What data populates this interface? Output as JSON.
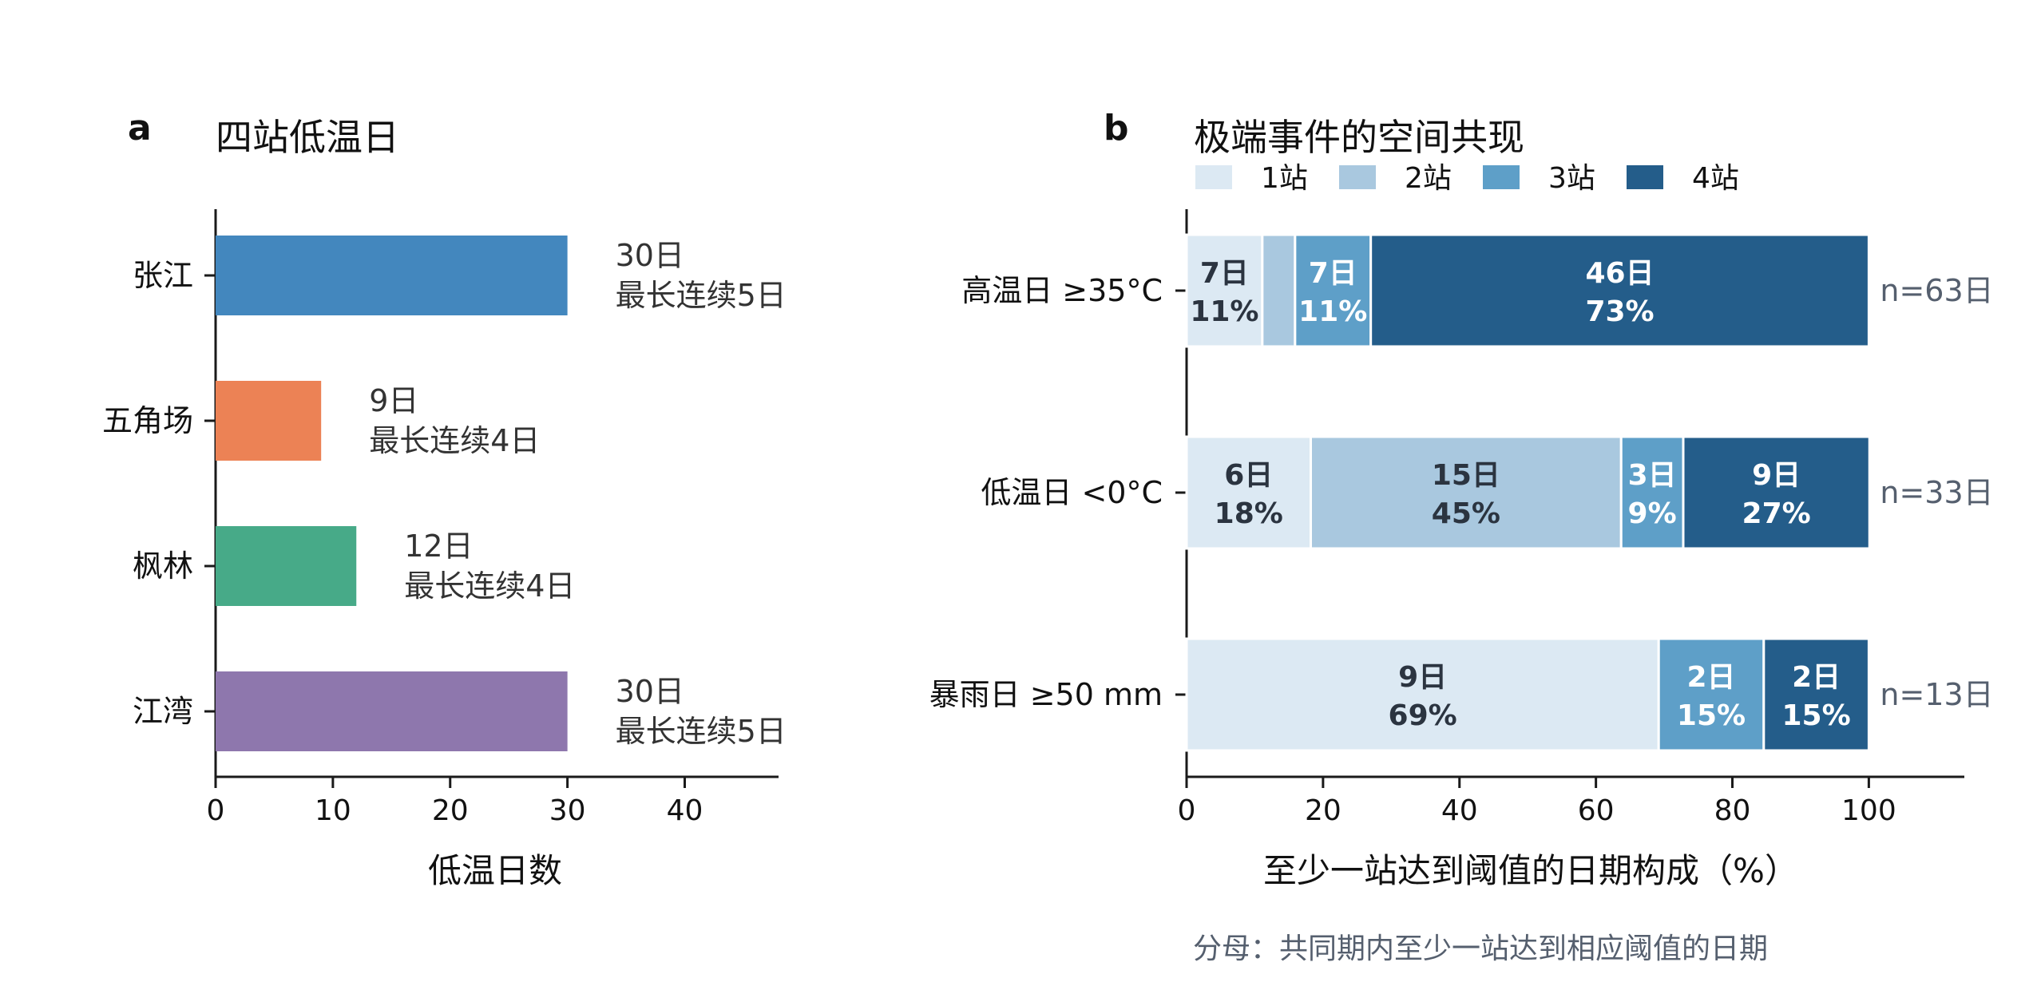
{
  "panels": {
    "a": {
      "letter": "a"
    },
    "b": {
      "letter": "b"
    }
  },
  "colors": {
    "axis": "#1a1a1a",
    "label_text": "#333333",
    "note_text": "#555f6e",
    "dark_text": "#2b3440"
  },
  "chart_data": [
    {
      "type": "bar",
      "orientation": "horizontal",
      "title": "四站低温日",
      "xlabel": "低温日数",
      "ylabel": "",
      "xlim": [
        0,
        48
      ],
      "xticks": [
        0,
        10,
        20,
        30,
        40
      ],
      "categories": [
        "张江",
        "五角场",
        "枫林",
        "江湾"
      ],
      "values": [
        30,
        9,
        12,
        30
      ],
      "bar_colors": [
        "#4387be",
        "#ec8255",
        "#47aa88",
        "#8e77ad"
      ],
      "data_labels": [
        [
          "30日",
          "最长连续5日"
        ],
        [
          "9日",
          "最长连续4日"
        ],
        [
          "12日",
          "最长连续4日"
        ],
        [
          "30日",
          "最长连续5日"
        ]
      ],
      "grid": false
    },
    {
      "type": "bar",
      "orientation": "horizontal",
      "stacked": true,
      "title": "极端事件的空间共现",
      "xlabel": "至少一站达到阈值的日期构成（%）",
      "ylabel": "",
      "xlim": [
        0,
        114
      ],
      "xticks": [
        0,
        20,
        40,
        60,
        80,
        100
      ],
      "categories": [
        "高温日 ≥35°C",
        "低温日 <0°C",
        "暴雨日 ≥50 mm"
      ],
      "legend": {
        "placement": "top-left",
        "entries": [
          "1站",
          "2站",
          "3站",
          "4站"
        ]
      },
      "series": [
        {
          "name": "1站",
          "color": "#dce9f3",
          "text_color": "#2b3440",
          "values": [
            11.1,
            18.2,
            69.2
          ],
          "labels": [
            [
              "7日",
              "11%"
            ],
            [
              "6日",
              "18%"
            ],
            [
              "9日",
              "69%"
            ]
          ]
        },
        {
          "name": "2站",
          "color": "#a9c8df",
          "text_color": "#2b3440",
          "values": [
            4.8,
            45.5,
            0
          ],
          "labels": [
            null,
            [
              "15日",
              "45%"
            ],
            null
          ]
        },
        {
          "name": "3站",
          "color": "#5e9fc8",
          "text_color": "#ffffff",
          "values": [
            11.1,
            9.1,
            15.4
          ],
          "labels": [
            [
              "7日",
              "11%"
            ],
            [
              "3日",
              "9%"
            ],
            [
              "2日",
              "15%"
            ]
          ]
        },
        {
          "name": "4站",
          "color": "#245d8a",
          "text_color": "#ffffff",
          "values": [
            73.0,
            27.3,
            15.4
          ],
          "labels": [
            [
              "46日",
              "73%"
            ],
            [
              "9日",
              "27%"
            ],
            [
              "2日",
              "15%"
            ]
          ]
        }
      ],
      "totals": [
        "n=63日",
        "n=33日",
        "n=13日"
      ],
      "grid": false
    }
  ],
  "footnote": "分母：共同期内至少一站达到相应阈值的日期"
}
